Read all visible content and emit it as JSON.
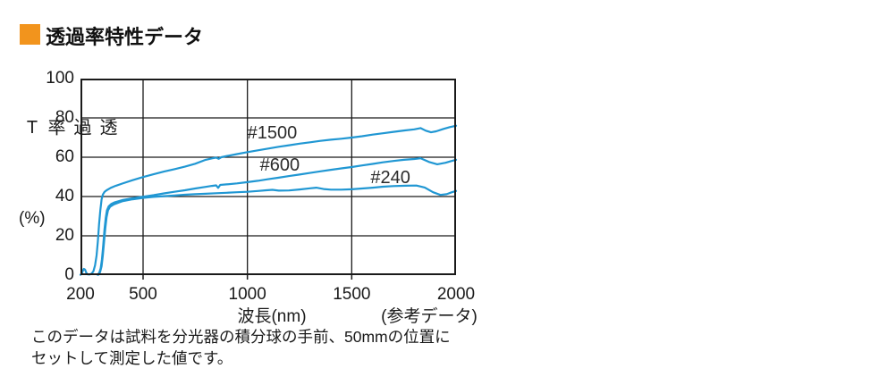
{
  "header": {
    "title": "透過率特性データ",
    "bullet_color": "#F2941D"
  },
  "chart_data": {
    "type": "line",
    "xlabel": "波長(nm)",
    "xlabel_note": "(参考データ)",
    "ylabel_vertical": "透過率T",
    "ylabel_unit": "(%)",
    "xlim": [
      200,
      2000
    ],
    "ylim": [
      0,
      100
    ],
    "grid": true,
    "x_tick_values": [
      200,
      500,
      1000,
      1500,
      2000
    ],
    "x_tick_labels": [
      "200",
      "500",
      "1000",
      "1500",
      "2000"
    ],
    "y_tick_values": [
      0,
      20,
      40,
      60,
      80,
      100
    ],
    "y_tick_labels": [
      "0",
      "20",
      "40",
      "60",
      "80",
      "100"
    ],
    "x_gridlines": [
      500,
      1000,
      1500
    ],
    "y_gridlines": [
      20,
      40,
      60,
      80
    ],
    "line_color": "#2097d3",
    "series": [
      {
        "name": "#1500",
        "label_pos": [
          1000,
          72.5
        ],
        "points": [
          [
            200,
            0.2
          ],
          [
            206,
            0.6
          ],
          [
            211,
            2.2
          ],
          [
            216,
            3.2
          ],
          [
            222,
            2.8
          ],
          [
            228,
            1.2
          ],
          [
            234,
            0.4
          ],
          [
            244,
            0.3
          ],
          [
            254,
            0.8
          ],
          [
            262,
            2
          ],
          [
            270,
            5
          ],
          [
            277,
            10
          ],
          [
            283,
            17
          ],
          [
            289,
            26
          ],
          [
            295,
            33
          ],
          [
            301,
            38.5
          ],
          [
            307,
            41
          ],
          [
            315,
            42.3
          ],
          [
            325,
            43.2
          ],
          [
            345,
            44.4
          ],
          [
            370,
            45.5
          ],
          [
            400,
            46.6
          ],
          [
            450,
            48.3
          ],
          [
            500,
            49.9
          ],
          [
            550,
            51.3
          ],
          [
            600,
            52.7
          ],
          [
            650,
            53.9
          ],
          [
            700,
            55.2
          ],
          [
            750,
            56.7
          ],
          [
            800,
            58.7
          ],
          [
            830,
            59.4
          ],
          [
            850,
            59.8
          ],
          [
            862,
            59.2
          ],
          [
            875,
            60
          ],
          [
            900,
            60.6
          ],
          [
            950,
            61.6
          ],
          [
            1000,
            62.6
          ],
          [
            1050,
            63.5
          ],
          [
            1100,
            64.4
          ],
          [
            1150,
            65.3
          ],
          [
            1200,
            66.1
          ],
          [
            1250,
            66.9
          ],
          [
            1300,
            67.6
          ],
          [
            1350,
            68.3
          ],
          [
            1400,
            68.9
          ],
          [
            1450,
            69.4
          ],
          [
            1500,
            70
          ],
          [
            1550,
            70.7
          ],
          [
            1600,
            71.5
          ],
          [
            1650,
            72.2
          ],
          [
            1700,
            72.9
          ],
          [
            1750,
            73.6
          ],
          [
            1800,
            74.2
          ],
          [
            1830,
            74.8
          ],
          [
            1855,
            73.5
          ],
          [
            1880,
            72.7
          ],
          [
            1905,
            73.2
          ],
          [
            1940,
            74.4
          ],
          [
            1970,
            75.3
          ],
          [
            2000,
            76
          ]
        ]
      },
      {
        "name": "#600",
        "label_pos": [
          1060,
          56
        ],
        "points": [
          [
            282,
            0.2
          ],
          [
            290,
            1.2
          ],
          [
            297,
            3.5
          ],
          [
            303,
            8
          ],
          [
            309,
            15
          ],
          [
            315,
            23
          ],
          [
            321,
            29
          ],
          [
            327,
            33
          ],
          [
            335,
            35
          ],
          [
            347,
            36.2
          ],
          [
            365,
            37.1
          ],
          [
            400,
            38.2
          ],
          [
            450,
            39.1
          ],
          [
            500,
            39.9
          ],
          [
            550,
            40.7
          ],
          [
            600,
            41.6
          ],
          [
            650,
            42.4
          ],
          [
            700,
            43.2
          ],
          [
            750,
            44.1
          ],
          [
            800,
            44.9
          ],
          [
            830,
            45.4
          ],
          [
            850,
            45.7
          ],
          [
            860,
            44.4
          ],
          [
            870,
            45.9
          ],
          [
            900,
            46.2
          ],
          [
            950,
            46.7
          ],
          [
            1000,
            47.3
          ],
          [
            1050,
            48
          ],
          [
            1100,
            48.8
          ],
          [
            1150,
            49.6
          ],
          [
            1200,
            50.4
          ],
          [
            1250,
            51.2
          ],
          [
            1300,
            52
          ],
          [
            1350,
            52.8
          ],
          [
            1400,
            53.6
          ],
          [
            1450,
            54.3
          ],
          [
            1500,
            55
          ],
          [
            1550,
            55.8
          ],
          [
            1600,
            56.6
          ],
          [
            1650,
            57.4
          ],
          [
            1700,
            58.1
          ],
          [
            1750,
            58.7
          ],
          [
            1800,
            59.1
          ],
          [
            1830,
            59.5
          ],
          [
            1870,
            57.6
          ],
          [
            1910,
            56.4
          ],
          [
            1950,
            57.2
          ],
          [
            1975,
            58
          ],
          [
            2000,
            58.7
          ]
        ]
      },
      {
        "name": "#240",
        "label_pos": [
          1590,
          49.5
        ],
        "points": [
          [
            286,
            0.2
          ],
          [
            294,
            1.5
          ],
          [
            301,
            4.5
          ],
          [
            307,
            10
          ],
          [
            313,
            17
          ],
          [
            319,
            24
          ],
          [
            325,
            29.5
          ],
          [
            332,
            33
          ],
          [
            342,
            34.8
          ],
          [
            360,
            36
          ],
          [
            385,
            37
          ],
          [
            400,
            37.6
          ],
          [
            450,
            38.6
          ],
          [
            500,
            39.3
          ],
          [
            550,
            39.8
          ],
          [
            600,
            40.2
          ],
          [
            650,
            40.5
          ],
          [
            700,
            40.9
          ],
          [
            750,
            41.2
          ],
          [
            800,
            41.4
          ],
          [
            850,
            41.7
          ],
          [
            900,
            41.9
          ],
          [
            950,
            42.2
          ],
          [
            1000,
            42.4
          ],
          [
            1050,
            42.8
          ],
          [
            1090,
            43.2
          ],
          [
            1120,
            43.4
          ],
          [
            1150,
            43
          ],
          [
            1200,
            43.1
          ],
          [
            1250,
            43.6
          ],
          [
            1300,
            44.2
          ],
          [
            1330,
            44.5
          ],
          [
            1365,
            43.8
          ],
          [
            1400,
            43.5
          ],
          [
            1450,
            43.5
          ],
          [
            1500,
            43.7
          ],
          [
            1550,
            44.1
          ],
          [
            1600,
            44.5
          ],
          [
            1650,
            45
          ],
          [
            1700,
            45.3
          ],
          [
            1760,
            45.5
          ],
          [
            1810,
            45.6
          ],
          [
            1850,
            44.6
          ],
          [
            1890,
            42.2
          ],
          [
            1925,
            40.8
          ],
          [
            1955,
            41.2
          ],
          [
            1980,
            42.2
          ],
          [
            2000,
            42.8
          ]
        ]
      }
    ]
  },
  "footnote": {
    "line1": "このデータは試料を分光器の積分球の手前、50mmの位置に",
    "line2": "セットして測定した値です。"
  }
}
